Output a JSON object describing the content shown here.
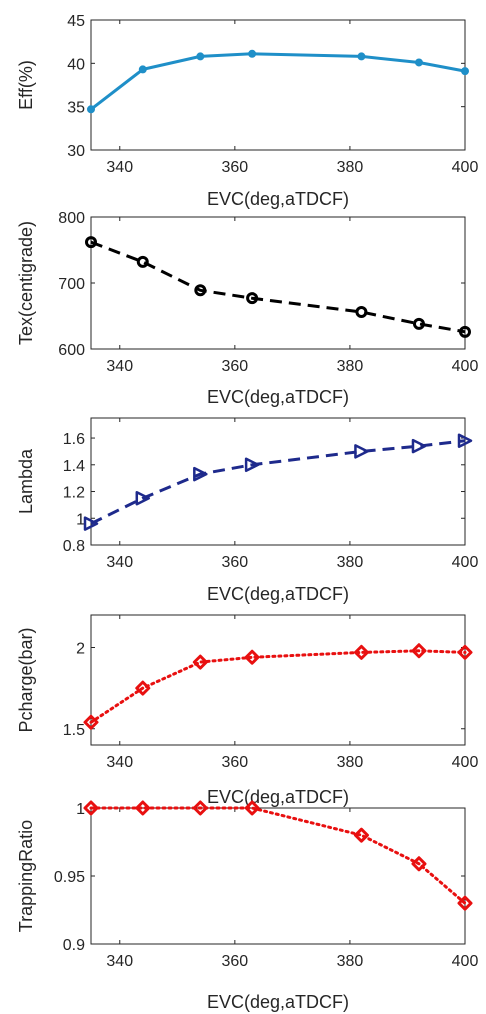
{
  "chart_data": [
    {
      "type": "line",
      "xlabel": "EVC(deg,aTDCF)",
      "ylabel": "Eff(%)",
      "xlim": [
        335,
        400
      ],
      "ylim": [
        30,
        45
      ],
      "xticks": [
        "340",
        "360",
        "380",
        "400"
      ],
      "yticks": [
        "30",
        "35",
        "40",
        "45"
      ],
      "color": "#1f8fc8",
      "line_style": "solid",
      "marker": "dot",
      "series": [
        {
          "x": [
            335,
            344,
            354,
            363,
            382,
            392,
            400
          ],
          "values": [
            34.7,
            39.3,
            40.8,
            41.1,
            40.8,
            40.1,
            39.1
          ]
        }
      ]
    },
    {
      "type": "line",
      "xlabel": "EVC(deg,aTDCF)",
      "ylabel": "Tex(centigrade)",
      "xlim": [
        335,
        400
      ],
      "ylim": [
        600,
        800
      ],
      "xticks": [
        "340",
        "360",
        "380",
        "400"
      ],
      "yticks": [
        "600",
        "700",
        "800"
      ],
      "color": "#000000",
      "line_style": "dashed",
      "marker": "circle",
      "series": [
        {
          "x": [
            335,
            344,
            354,
            363,
            382,
            392,
            400
          ],
          "values": [
            762,
            732,
            689,
            677,
            656,
            638,
            626
          ]
        }
      ]
    },
    {
      "type": "line",
      "xlabel": "EVC(deg,aTDCF)",
      "ylabel": "Lambda",
      "xlim": [
        335,
        400
      ],
      "ylim": [
        0.8,
        1.75
      ],
      "xticks": [
        "340",
        "360",
        "380",
        "400"
      ],
      "yticks": [
        "0.8",
        "1",
        "1.2",
        "1.4",
        "1.6"
      ],
      "color": "#1e2a8c",
      "line_style": "dashed",
      "marker": "triangle-right",
      "series": [
        {
          "x": [
            335,
            344,
            354,
            363,
            382,
            392,
            400
          ],
          "values": [
            0.96,
            1.15,
            1.33,
            1.4,
            1.5,
            1.54,
            1.58
          ]
        }
      ]
    },
    {
      "type": "line",
      "xlabel": "EVC(deg,aTDCF)",
      "ylabel": "Pcharge(bar)",
      "xlim": [
        335,
        400
      ],
      "ylim": [
        1.4,
        2.2
      ],
      "xticks": [
        "340",
        "360",
        "380",
        "400"
      ],
      "yticks": [
        "1.5",
        "2"
      ],
      "color": "#e81010",
      "line_style": "dotted",
      "marker": "diamond",
      "series": [
        {
          "x": [
            335,
            344,
            354,
            363,
            382,
            392,
            400
          ],
          "values": [
            1.54,
            1.75,
            1.91,
            1.94,
            1.97,
            1.98,
            1.97
          ]
        }
      ]
    },
    {
      "type": "line",
      "xlabel": "EVC(deg,aTDCF)",
      "ylabel": "TrappingRatio",
      "xlim": [
        335,
        400
      ],
      "ylim": [
        0.9,
        1.0
      ],
      "xticks": [
        "340",
        "360",
        "380",
        "400"
      ],
      "yticks": [
        "0.9",
        "0.95",
        "1"
      ],
      "color": "#e81010",
      "line_style": "dotted",
      "marker": "diamond",
      "series": [
        {
          "x": [
            335,
            344,
            354,
            363,
            382,
            392,
            400
          ],
          "values": [
            1.0,
            1.0,
            1.0,
            1.0,
            0.98,
            0.959,
            0.93
          ]
        }
      ]
    }
  ]
}
